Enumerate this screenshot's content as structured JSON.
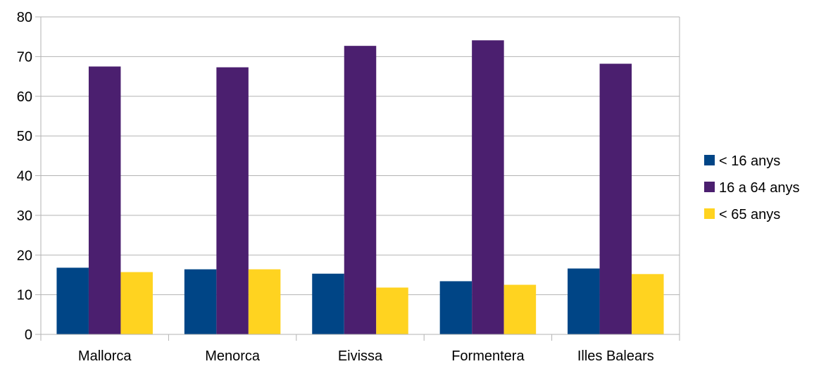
{
  "chart_data": {
    "type": "bar",
    "title": "",
    "xlabel": "",
    "ylabel": "",
    "categories": [
      "Mallorca",
      "Menorca",
      "Eivissa",
      "Formentera",
      "Illes Balears"
    ],
    "series": [
      {
        "name": "< 16 anys",
        "color": "#004586",
        "values": [
          16.8,
          16.4,
          15.3,
          13.4,
          16.6
        ]
      },
      {
        "name": "16 a 64 anys",
        "color": "#4b1f6f",
        "values": [
          67.5,
          67.3,
          72.7,
          74.1,
          68.2
        ]
      },
      {
        "name": "< 65 anys",
        "color": "#ffd320",
        "values": [
          15.7,
          16.4,
          11.8,
          12.5,
          15.2
        ]
      }
    ],
    "ylim": [
      0,
      80
    ],
    "yticks": [
      0,
      10,
      20,
      30,
      40,
      50,
      60,
      70,
      80
    ],
    "grid": true,
    "gridColor": "#b3b3b3",
    "legend": "right"
  }
}
